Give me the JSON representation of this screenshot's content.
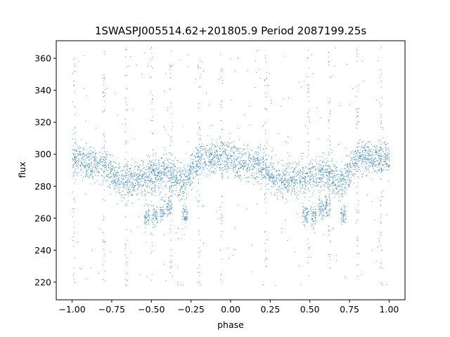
{
  "chart_data": {
    "type": "scatter",
    "title": "1SWASPJ005514.62+201805.9 Period 2087199.25s",
    "xlabel": "phase",
    "ylabel": "flux",
    "xlim": [
      -1.1,
      1.1
    ],
    "ylim": [
      209,
      371
    ],
    "x_ticks": [
      -1.0,
      -0.75,
      -0.5,
      -0.25,
      0.0,
      0.25,
      0.5,
      0.75,
      1.0
    ],
    "x_tick_labels": [
      "−1.00",
      "−0.75",
      "−0.50",
      "−0.25",
      "0.00",
      "0.25",
      "0.50",
      "0.75",
      "1.00"
    ],
    "y_ticks": [
      220,
      240,
      260,
      280,
      300,
      320,
      340,
      360
    ],
    "y_tick_labels": [
      "220",
      "240",
      "260",
      "280",
      "300",
      "320",
      "340",
      "360"
    ],
    "grid": false,
    "marker_color": "#1f77b4",
    "series_summary": {
      "phase_range": [
        -1.0,
        1.0
      ],
      "flux_median_profile": [
        {
          "phase": -1.0,
          "flux": 298
        },
        {
          "phase": -0.9,
          "flux": 294
        },
        {
          "phase": -0.8,
          "flux": 293
        },
        {
          "phase": -0.7,
          "flux": 283
        },
        {
          "phase": -0.6,
          "flux": 284
        },
        {
          "phase": -0.5,
          "flux": 287
        },
        {
          "phase": -0.4,
          "flux": 289
        },
        {
          "phase": -0.3,
          "flux": 282
        },
        {
          "phase": -0.2,
          "flux": 299
        },
        {
          "phase": -0.1,
          "flux": 298
        },
        {
          "phase": 0.0,
          "flux": 298
        },
        {
          "phase": 0.1,
          "flux": 294
        },
        {
          "phase": 0.2,
          "flux": 293
        },
        {
          "phase": 0.3,
          "flux": 283
        },
        {
          "phase": 0.4,
          "flux": 284
        },
        {
          "phase": 0.5,
          "flux": 287
        },
        {
          "phase": 0.6,
          "flux": 289
        },
        {
          "phase": 0.7,
          "flux": 282
        },
        {
          "phase": 0.8,
          "flux": 299
        },
        {
          "phase": 0.9,
          "flux": 298
        },
        {
          "phase": 1.0,
          "flux": 298
        }
      ],
      "low_flux_clumps": [
        {
          "phase": -0.53,
          "flux": 261
        },
        {
          "phase": -0.48,
          "flux": 262
        },
        {
          "phase": -0.43,
          "flux": 266
        },
        {
          "phase": -0.39,
          "flux": 268
        },
        {
          "phase": -0.29,
          "flux": 262
        },
        {
          "phase": 0.47,
          "flux": 261
        },
        {
          "phase": 0.52,
          "flux": 262
        },
        {
          "phase": 0.57,
          "flux": 266
        },
        {
          "phase": 0.61,
          "flux": 268
        },
        {
          "phase": 0.71,
          "flux": 262
        }
      ],
      "outlier_streak_phases": [
        -0.99,
        -0.8,
        -0.66,
        -0.5,
        -0.38,
        -0.2,
        -0.06,
        0.22,
        0.49,
        0.62,
        0.8,
        0.95
      ]
    }
  }
}
